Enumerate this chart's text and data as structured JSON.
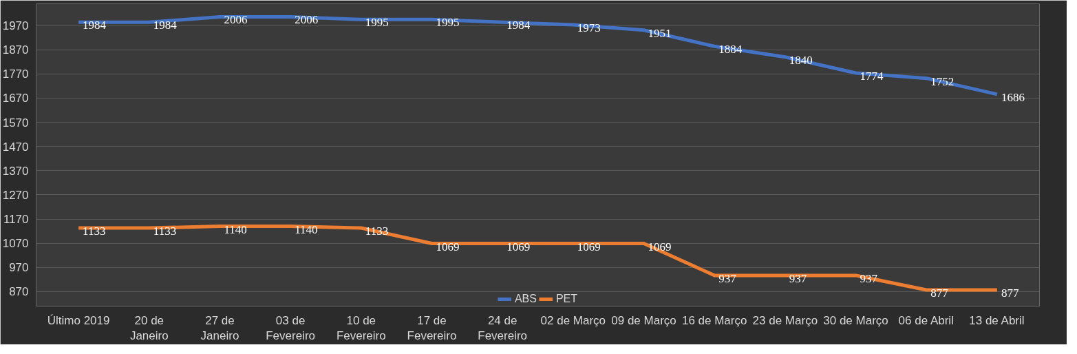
{
  "chart_data": {
    "type": "line",
    "categories": [
      "Último 2019",
      "20 de Janeiro",
      "27 de Janeiro",
      "03 de Fevereiro",
      "10 de Fevereiro",
      "17 de Fevereiro",
      "24 de Fevereiro",
      "02 de Março",
      "09 de Março",
      "16 de Março",
      "23 de Março",
      "30 de Março",
      "06 de Abril",
      "13 de Abril"
    ],
    "series": [
      {
        "name": "ABS",
        "color": "#4472c4",
        "values": [
          1984,
          1984,
          2006,
          2006,
          1995,
          1995,
          1984,
          1973,
          1951,
          1884,
          1840,
          1774,
          1752,
          1686
        ]
      },
      {
        "name": "PET",
        "color": "#ed7d31",
        "values": [
          1133,
          1133,
          1140,
          1140,
          1133,
          1069,
          1069,
          1069,
          1069,
          937,
          937,
          937,
          877,
          877
        ]
      }
    ],
    "ylim": [
      810,
      2060
    ],
    "yticks": [
      870,
      970,
      1070,
      1170,
      1270,
      1370,
      1470,
      1570,
      1670,
      1770,
      1870,
      1970
    ],
    "grid": "y",
    "legend": "bottom",
    "data_labels": true,
    "marker": "none",
    "line_style": "solid"
  }
}
